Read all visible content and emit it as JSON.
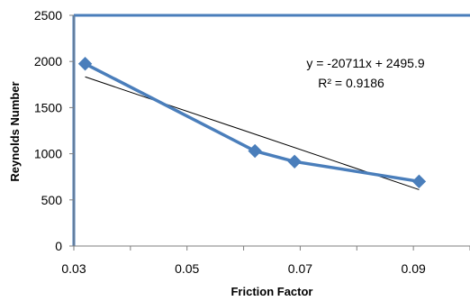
{
  "chart_data": {
    "type": "scatter",
    "xlabel": "Friction Factor",
    "ylabel": "Reynolds Number",
    "xlim": [
      0.03,
      0.1
    ],
    "ylim": [
      0,
      2500
    ],
    "x_ticks": [
      "0.03",
      "0.05",
      "0.07",
      "0.09"
    ],
    "y_ticks": [
      "0",
      "500",
      "1000",
      "1500",
      "2000",
      "2500"
    ],
    "grid": false,
    "series": [
      {
        "color": "#4a7ebb",
        "marker": "diamond",
        "x": [
          0.032,
          0.062,
          0.069,
          0.091
        ],
        "y": [
          1975,
          1030,
          915,
          700
        ]
      }
    ],
    "trendline": {
      "slope": -20711,
      "intercept": 2495.9,
      "x_range": [
        0.032,
        0.091
      ],
      "color": "#000000"
    },
    "annotations": [
      "y = -20711x + 2495.9",
      "R² = 0.9186"
    ]
  }
}
